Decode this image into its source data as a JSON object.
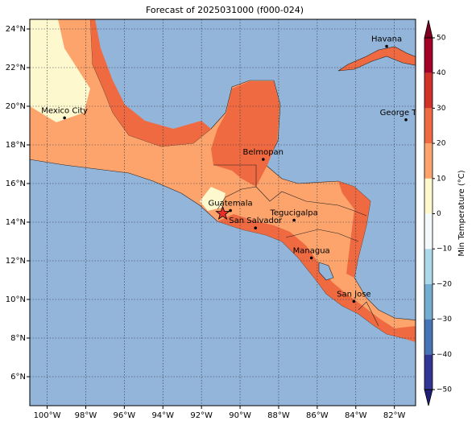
{
  "map": {
    "title": "Forecast of 2025031000 (f000-024)",
    "xlim": [
      -100.9,
      -80.9
    ],
    "ylim": [
      4.5,
      24.5
    ],
    "xticks": [
      {
        "value": -100,
        "label": "100°W"
      },
      {
        "value": -98,
        "label": "98°W"
      },
      {
        "value": -96,
        "label": "96°W"
      },
      {
        "value": -94,
        "label": "94°W"
      },
      {
        "value": -92,
        "label": "92°W"
      },
      {
        "value": -90,
        "label": "90°W"
      },
      {
        "value": -88,
        "label": "88°W"
      },
      {
        "value": -86,
        "label": "86°W"
      },
      {
        "value": -84,
        "label": "84°W"
      },
      {
        "value": -82,
        "label": "82°W"
      }
    ],
    "yticks": [
      {
        "value": 6,
        "label": "6°N"
      },
      {
        "value": 8,
        "label": "8°N"
      },
      {
        "value": 10,
        "label": "10°N"
      },
      {
        "value": 12,
        "label": "12°N"
      },
      {
        "value": 14,
        "label": "14°N"
      },
      {
        "value": 16,
        "label": "16°N"
      },
      {
        "value": 18,
        "label": "18°N"
      },
      {
        "value": 20,
        "label": "20°N"
      },
      {
        "value": 22,
        "label": "22°N"
      },
      {
        "value": 24,
        "label": "24°N"
      }
    ],
    "grid": true,
    "cities": [
      {
        "name": "Havana",
        "lon": -82.4,
        "lat": 23.1
      },
      {
        "name": "George Town",
        "lon": -81.4,
        "lat": 19.3
      },
      {
        "name": "Mexico City",
        "lon": -99.1,
        "lat": 19.4
      },
      {
        "name": "Belmopan",
        "lon": -88.8,
        "lat": 17.25
      },
      {
        "name": "Guatemala",
        "lon": -90.5,
        "lat": 14.6
      },
      {
        "name": "San Salvador",
        "lon": -89.2,
        "lat": 13.7
      },
      {
        "name": "Tegucigalpa",
        "lon": -87.2,
        "lat": 14.1
      },
      {
        "name": "Managua",
        "lon": -86.3,
        "lat": 12.15
      },
      {
        "name": "San Jose",
        "lon": -84.1,
        "lat": 9.9
      }
    ],
    "marker": {
      "lon": -90.9,
      "lat": 14.45,
      "color": "#e8302a"
    },
    "colorbar": {
      "label": "Min Temperature (°C)",
      "lim": [
        -50,
        50
      ],
      "ticks": [
        {
          "value": -50,
          "label": "−50"
        },
        {
          "value": -40,
          "label": "−40"
        },
        {
          "value": -30,
          "label": "−30"
        },
        {
          "value": -20,
          "label": "−20"
        },
        {
          "value": -10,
          "label": "−10"
        },
        0,
        10,
        20,
        30,
        40,
        50
      ],
      "colors": [
        "#313695",
        "#4575b4",
        "#74add1",
        "#abd9e9",
        "#f4fafc",
        "#fef8cf",
        "#fca46c",
        "#f06a41",
        "#d3302a",
        "#a50026"
      ],
      "extend_colors": [
        "#1f1f7a",
        "#7f0020"
      ]
    }
  }
}
